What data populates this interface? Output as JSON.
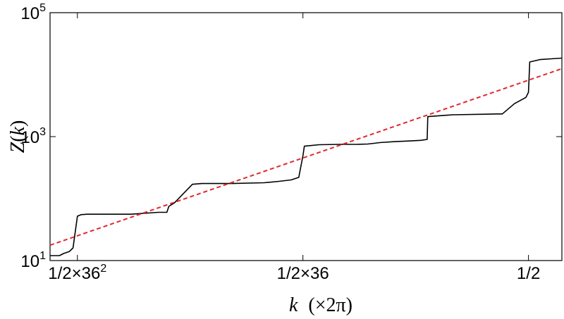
{
  "chart_data": {
    "type": "line",
    "scale": {
      "x": "log",
      "y": "log"
    },
    "xlim": [
      0.00025,
      0.85
    ],
    "ylim": [
      10,
      100000
    ],
    "title": "",
    "xlabel": {
      "var": "k",
      "unit": "(×2π)"
    },
    "ylabel": {
      "fn": "Z",
      "open": "(",
      "var": "k",
      "close": ")"
    },
    "x_ticks": [
      {
        "value": 0.000386,
        "label": "1/2×36",
        "sup": "2"
      },
      {
        "value": 0.01389,
        "label": "1/2×36",
        "sup": ""
      },
      {
        "value": 0.5,
        "label": "1/2",
        "sup": ""
      }
    ],
    "y_ticks": [
      {
        "value": 10,
        "base": "10",
        "exp": "1"
      },
      {
        "value": 1000,
        "base": "10",
        "exp": "3"
      },
      {
        "value": 100000,
        "base": "10",
        "exp": "5"
      }
    ],
    "series": [
      {
        "style": "solid",
        "color": "#000000",
        "x": [
          0.00025,
          0.00029,
          0.00031,
          0.00034,
          0.00036,
          0.000386,
          0.00041,
          0.00045,
          0.0006,
          0.0009,
          0.0014,
          0.0016,
          0.00165,
          0.0018,
          0.0024,
          0.0028,
          0.0031,
          0.0045,
          0.0075,
          0.0095,
          0.0115,
          0.013,
          0.0139,
          0.0142,
          0.018,
          0.025,
          0.033,
          0.039,
          0.043,
          0.047,
          0.06,
          0.075,
          0.09,
          0.1,
          0.101,
          0.15,
          0.25,
          0.3,
          0.33,
          0.4,
          0.48,
          0.5,
          0.51,
          0.6,
          0.72,
          0.85
        ],
        "y": [
          12,
          12,
          13,
          14,
          16,
          52,
          55,
          56,
          56,
          56,
          60,
          60,
          75,
          85,
          170,
          175,
          175,
          175,
          180,
          190,
          200,
          220,
          500,
          700,
          740,
          750,
          750,
          760,
          780,
          800,
          830,
          850,
          870,
          900,
          2100,
          2250,
          2300,
          2320,
          2320,
          3400,
          4300,
          5200,
          16000,
          17500,
          18000,
          18500
        ]
      },
      {
        "style": "dashed",
        "color": "#e0282e",
        "x": [
          0.00025,
          0.85
        ],
        "y": [
          17.7,
          12500
        ]
      }
    ]
  }
}
